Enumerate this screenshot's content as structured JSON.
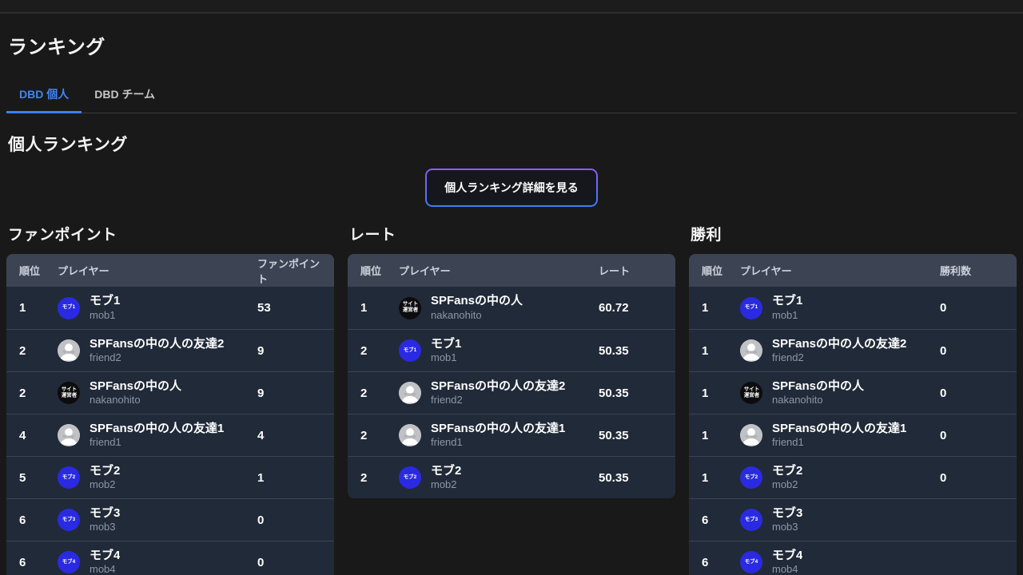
{
  "page": {
    "title": "ランキング",
    "section_title": "個人ランキング",
    "detail_button": "個人ランキング詳細を見る"
  },
  "tabs": [
    {
      "label": "DBD 個人",
      "active": true
    },
    {
      "label": "DBD チーム",
      "active": false
    }
  ],
  "columns": {
    "rank": "順位",
    "player": "プレイヤー"
  },
  "tables": [
    {
      "title": "ファンポイント",
      "value_header": "ファンポイント",
      "rows": [
        {
          "rank": "1",
          "name": "モブ1",
          "id": "mob1",
          "avatar": "blue",
          "avatar_label": "モブ1",
          "value": "53"
        },
        {
          "rank": "2",
          "name": "SPFansの中の人の友達2",
          "id": "friend2",
          "avatar": "gray",
          "avatar_label": "No Image",
          "value": "9"
        },
        {
          "rank": "2",
          "name": "SPFansの中の人",
          "id": "nakanohito",
          "avatar": "black",
          "avatar_label": "サイト\n運営者",
          "value": "9"
        },
        {
          "rank": "4",
          "name": "SPFansの中の人の友達1",
          "id": "friend1",
          "avatar": "gray",
          "avatar_label": "No Image",
          "value": "4"
        },
        {
          "rank": "5",
          "name": "モブ2",
          "id": "mob2",
          "avatar": "blue",
          "avatar_label": "モブ2",
          "value": "1"
        },
        {
          "rank": "6",
          "name": "モブ3",
          "id": "mob3",
          "avatar": "blue",
          "avatar_label": "モブ3",
          "value": "0"
        },
        {
          "rank": "6",
          "name": "モブ4",
          "id": "mob4",
          "avatar": "blue",
          "avatar_label": "モブ4",
          "value": "0"
        }
      ]
    },
    {
      "title": "レート",
      "value_header": "レート",
      "rows": [
        {
          "rank": "1",
          "name": "SPFansの中の人",
          "id": "nakanohito",
          "avatar": "black",
          "avatar_label": "サイト\n運営者",
          "value": "60.72"
        },
        {
          "rank": "2",
          "name": "モブ1",
          "id": "mob1",
          "avatar": "blue",
          "avatar_label": "モブ1",
          "value": "50.35"
        },
        {
          "rank": "2",
          "name": "SPFansの中の人の友達2",
          "id": "friend2",
          "avatar": "gray",
          "avatar_label": "No Image",
          "value": "50.35"
        },
        {
          "rank": "2",
          "name": "SPFansの中の人の友達1",
          "id": "friend1",
          "avatar": "gray",
          "avatar_label": "No Image",
          "value": "50.35"
        },
        {
          "rank": "2",
          "name": "モブ2",
          "id": "mob2",
          "avatar": "blue",
          "avatar_label": "モブ2",
          "value": "50.35"
        }
      ]
    },
    {
      "title": "勝利",
      "value_header": "勝利数",
      "rows": [
        {
          "rank": "1",
          "name": "モブ1",
          "id": "mob1",
          "avatar": "blue",
          "avatar_label": "モブ1",
          "value": "0"
        },
        {
          "rank": "1",
          "name": "SPFansの中の人の友達2",
          "id": "friend2",
          "avatar": "gray",
          "avatar_label": "No Image",
          "value": "0"
        },
        {
          "rank": "1",
          "name": "SPFansの中の人",
          "id": "nakanohito",
          "avatar": "black",
          "avatar_label": "サイト\n運営者",
          "value": "0"
        },
        {
          "rank": "1",
          "name": "SPFansの中の人の友達1",
          "id": "friend1",
          "avatar": "gray",
          "avatar_label": "No Image",
          "value": "0"
        },
        {
          "rank": "1",
          "name": "モブ2",
          "id": "mob2",
          "avatar": "blue",
          "avatar_label": "モブ2",
          "value": "0"
        },
        {
          "rank": "6",
          "name": "モブ3",
          "id": "mob3",
          "avatar": "blue",
          "avatar_label": "モブ3",
          "value": ""
        },
        {
          "rank": "6",
          "name": "モブ4",
          "id": "mob4",
          "avatar": "blue",
          "avatar_label": "モブ4",
          "value": ""
        }
      ]
    }
  ],
  "colors": {
    "accent_blue": "#4285f4",
    "tab_underline": "#3d7ef5",
    "button_border_top": "#8a5cf6",
    "button_border_bottom": "#3c7cfa",
    "header_bg": "#3c4454",
    "row_bg": "#212a38",
    "avatar_blue": "#2a2ae2",
    "avatar_black": "#0c0c0e",
    "avatar_gray": "#bfc1c4"
  }
}
